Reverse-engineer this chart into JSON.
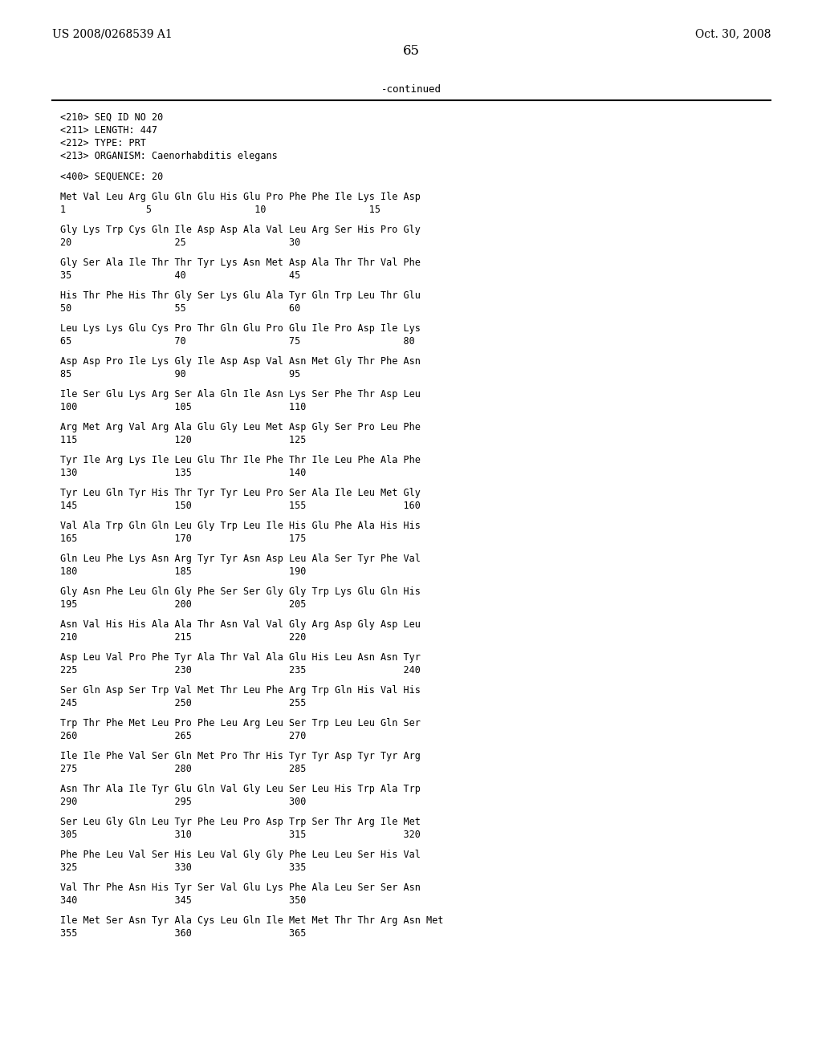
{
  "header_left": "US 2008/0268539 A1",
  "header_right": "Oct. 30, 2008",
  "page_number": "65",
  "continued_text": "-continued",
  "background_color": "#ffffff",
  "text_color": "#000000",
  "metadata_lines": [
    "<210> SEQ ID NO 20",
    "<211> LENGTH: 447",
    "<212> TYPE: PRT",
    "<213> ORGANISM: Caenorhabditis elegans"
  ],
  "sequence_header": "<400> SEQUENCE: 20",
  "sequence_blocks": [
    {
      "aa_line": "Met Val Leu Arg Glu Gln Glu His Glu Pro Phe Phe Ile Lys Ile Asp",
      "num_line": "1              5                  10                  15"
    },
    {
      "aa_line": "Gly Lys Trp Cys Gln Ile Asp Asp Ala Val Leu Arg Ser His Pro Gly",
      "num_line": "20                  25                  30"
    },
    {
      "aa_line": "Gly Ser Ala Ile Thr Thr Tyr Lys Asn Met Asp Ala Thr Thr Val Phe",
      "num_line": "35                  40                  45"
    },
    {
      "aa_line": "His Thr Phe His Thr Gly Ser Lys Glu Ala Tyr Gln Trp Leu Thr Glu",
      "num_line": "50                  55                  60"
    },
    {
      "aa_line": "Leu Lys Lys Glu Cys Pro Thr Gln Glu Pro Glu Ile Pro Asp Ile Lys",
      "num_line": "65                  70                  75                  80"
    },
    {
      "aa_line": "Asp Asp Pro Ile Lys Gly Ile Asp Asp Val Asn Met Gly Thr Phe Asn",
      "num_line": "85                  90                  95"
    },
    {
      "aa_line": "Ile Ser Glu Lys Arg Ser Ala Gln Ile Asn Lys Ser Phe Thr Asp Leu",
      "num_line": "100                 105                 110"
    },
    {
      "aa_line": "Arg Met Arg Val Arg Ala Glu Gly Leu Met Asp Gly Ser Pro Leu Phe",
      "num_line": "115                 120                 125"
    },
    {
      "aa_line": "Tyr Ile Arg Lys Ile Leu Glu Thr Ile Phe Thr Ile Leu Phe Ala Phe",
      "num_line": "130                 135                 140"
    },
    {
      "aa_line": "Tyr Leu Gln Tyr His Thr Tyr Tyr Leu Pro Ser Ala Ile Leu Met Gly",
      "num_line": "145                 150                 155                 160"
    },
    {
      "aa_line": "Val Ala Trp Gln Gln Leu Gly Trp Leu Ile His Glu Phe Ala His His",
      "num_line": "165                 170                 175"
    },
    {
      "aa_line": "Gln Leu Phe Lys Asn Arg Tyr Tyr Asn Asp Leu Ala Ser Tyr Phe Val",
      "num_line": "180                 185                 190"
    },
    {
      "aa_line": "Gly Asn Phe Leu Gln Gly Phe Ser Ser Gly Gly Trp Lys Glu Gln His",
      "num_line": "195                 200                 205"
    },
    {
      "aa_line": "Asn Val His His Ala Ala Thr Asn Val Val Gly Arg Asp Gly Asp Leu",
      "num_line": "210                 215                 220"
    },
    {
      "aa_line": "Asp Leu Val Pro Phe Tyr Ala Thr Val Ala Glu His Leu Asn Asn Tyr",
      "num_line": "225                 230                 235                 240"
    },
    {
      "aa_line": "Ser Gln Asp Ser Trp Val Met Thr Leu Phe Arg Trp Gln His Val His",
      "num_line": "245                 250                 255"
    },
    {
      "aa_line": "Trp Thr Phe Met Leu Pro Phe Leu Arg Leu Ser Trp Leu Leu Gln Ser",
      "num_line": "260                 265                 270"
    },
    {
      "aa_line": "Ile Ile Phe Val Ser Gln Met Pro Thr His Tyr Tyr Asp Tyr Tyr Arg",
      "num_line": "275                 280                 285"
    },
    {
      "aa_line": "Asn Thr Ala Ile Tyr Glu Gln Val Gly Leu Ser Leu His Trp Ala Trp",
      "num_line": "290                 295                 300"
    },
    {
      "aa_line": "Ser Leu Gly Gln Leu Tyr Phe Leu Pro Asp Trp Ser Thr Arg Ile Met",
      "num_line": "305                 310                 315                 320"
    },
    {
      "aa_line": "Phe Phe Leu Val Ser His Leu Val Gly Gly Phe Leu Leu Ser His Val",
      "num_line": "325                 330                 335"
    },
    {
      "aa_line": "Val Thr Phe Asn His Tyr Ser Val Glu Lys Phe Ala Leu Ser Ser Asn",
      "num_line": "340                 345                 350"
    },
    {
      "aa_line": "Ile Met Ser Asn Tyr Ala Cys Leu Gln Ile Met Met Thr Thr Arg Asn Met",
      "num_line": "355                 360                 365"
    }
  ]
}
